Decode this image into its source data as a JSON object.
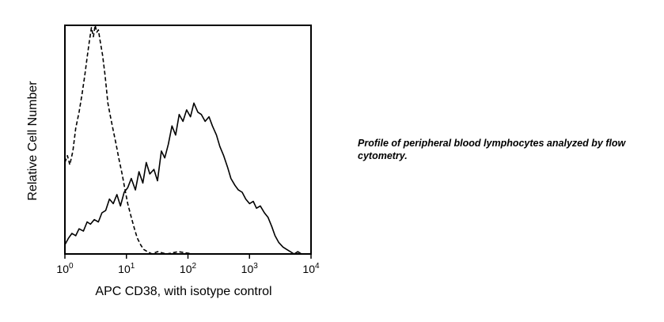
{
  "caption": "Profile of peripheral blood lymphocytes analyzed by flow cytometry.",
  "chart_data": {
    "type": "line",
    "title": "",
    "xlabel": "APC CD38, with isotype control",
    "ylabel": "Relative Cell Number",
    "x_scale": "log",
    "xlim": [
      1,
      10000
    ],
    "ylim": [
      0,
      100
    ],
    "grid": false,
    "legend": "none",
    "x_ticks": [
      {
        "value": 1,
        "base": "10",
        "exp": "0"
      },
      {
        "value": 10,
        "base": "10",
        "exp": "1"
      },
      {
        "value": 100,
        "base": "10",
        "exp": "2"
      },
      {
        "value": 1000,
        "base": "10",
        "exp": "3"
      },
      {
        "value": 10000,
        "base": "10",
        "exp": "4"
      }
    ],
    "series": [
      {
        "style": "dashed",
        "color": "#000000",
        "x": [
          1.0,
          1.1,
          1.2,
          1.35,
          1.5,
          1.7,
          1.9,
          2.1,
          2.3,
          2.5,
          2.7,
          2.9,
          3.1,
          3.3,
          3.5,
          3.8,
          4.1,
          4.5,
          5.0,
          5.5,
          6.0,
          6.8,
          7.5,
          8.5,
          9.5,
          10.5,
          12.0,
          13.5,
          15.0,
          17.0,
          19.0,
          22.0,
          26.0,
          32.0,
          45.0,
          70.0,
          120.0,
          300.0,
          1000.0
        ],
        "y": [
          40,
          43,
          39,
          45,
          55,
          62,
          70,
          78,
          86,
          93,
          99,
          95,
          100,
          97,
          98,
          92,
          87,
          78,
          66,
          60,
          55,
          48,
          42,
          35,
          28,
          22,
          16,
          11,
          7,
          4,
          2,
          1,
          0,
          1,
          0,
          1,
          0,
          0,
          0
        ]
      },
      {
        "style": "solid",
        "color": "#000000",
        "x": [
          1.0,
          1.15,
          1.3,
          1.5,
          1.7,
          2.0,
          2.3,
          2.6,
          3.0,
          3.5,
          4.0,
          4.6,
          5.3,
          6.1,
          7.0,
          8.0,
          9.2,
          10.5,
          12.0,
          14.0,
          16.0,
          18.5,
          21.0,
          24.0,
          28.0,
          32.0,
          37.0,
          42.0,
          48.0,
          55.0,
          63.0,
          72.0,
          83.0,
          95.0,
          110.0,
          125.0,
          145.0,
          165.0,
          190.0,
          220.0,
          250.0,
          290.0,
          330.0,
          380.0,
          440.0,
          500.0,
          580.0,
          660.0,
          760.0,
          870.0,
          1000.0,
          1150.0,
          1300.0,
          1500.0,
          1750.0,
          2000.0,
          2300.0,
          2600.0,
          3000.0,
          3500.0,
          4000.0,
          4600.0,
          5300.0,
          6100.0,
          7000.0,
          8000.0,
          10000.0
        ],
        "y": [
          4,
          7,
          9,
          8,
          11,
          10,
          14,
          13,
          15,
          14,
          18,
          19,
          24,
          22,
          26,
          21,
          27,
          29,
          33,
          28,
          36,
          31,
          40,
          35,
          37,
          32,
          45,
          42,
          48,
          56,
          52,
          61,
          58,
          63,
          60,
          66,
          62,
          61,
          58,
          60,
          56,
          52,
          47,
          43,
          38,
          33,
          30,
          28,
          27,
          24,
          22,
          23,
          20,
          21,
          18,
          16,
          12,
          8,
          5,
          3,
          2,
          1,
          0,
          1,
          0,
          0,
          0
        ]
      }
    ]
  }
}
